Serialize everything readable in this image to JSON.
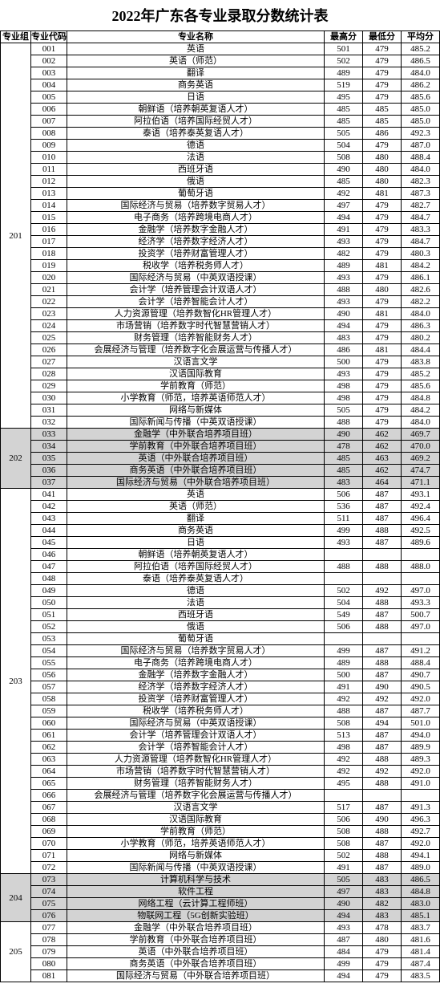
{
  "title": "2022年广东各专业录取分数统计表",
  "headers": {
    "group": "专业组",
    "code": "专业代码",
    "name": "专业名称",
    "max": "最高分",
    "min": "最低分",
    "avg": "平均分"
  },
  "columns": {
    "group": 38,
    "code": 45,
    "max": 48,
    "min": 48,
    "avg": 48
  },
  "font": {
    "body_size": 11,
    "title_size": 18,
    "family": "SimSun"
  },
  "colors": {
    "border": "#000000",
    "text": "#000000",
    "background": "#ffffff",
    "shaded_group": "#d3d3d3"
  },
  "groups": [
    {
      "id": "201",
      "shaded": false,
      "rows": [
        {
          "code": "001",
          "name": "英语",
          "max": 501,
          "min": 479,
          "avg": 485.2
        },
        {
          "code": "002",
          "name": "英语（师范）",
          "max": 502,
          "min": 479,
          "avg": 486.5
        },
        {
          "code": "003",
          "name": "翻译",
          "max": 489,
          "min": 479,
          "avg": 484.0
        },
        {
          "code": "004",
          "name": "商务英语",
          "max": 519,
          "min": 479,
          "avg": 486.2
        },
        {
          "code": "005",
          "name": "日语",
          "max": 495,
          "min": 479,
          "avg": 485.6
        },
        {
          "code": "006",
          "name": "朝鲜语（培养朝英复语人才）",
          "max": 485,
          "min": 485,
          "avg": 485.0
        },
        {
          "code": "007",
          "name": "阿拉伯语（培养国际经贸人才）",
          "max": 485,
          "min": 485,
          "avg": 485.0
        },
        {
          "code": "008",
          "name": "泰语（培养泰英复语人才）",
          "max": 505,
          "min": 486,
          "avg": 492.3
        },
        {
          "code": "009",
          "name": "德语",
          "max": 504,
          "min": 479,
          "avg": 487.0
        },
        {
          "code": "010",
          "name": "法语",
          "max": 508,
          "min": 480,
          "avg": 488.4
        },
        {
          "code": "011",
          "name": "西班牙语",
          "max": 490,
          "min": 480,
          "avg": 484.0
        },
        {
          "code": "012",
          "name": "俄语",
          "max": 485,
          "min": 480,
          "avg": 482.3
        },
        {
          "code": "013",
          "name": "葡萄牙语",
          "max": 492,
          "min": 481,
          "avg": 487.3
        },
        {
          "code": "014",
          "name": "国际经济与贸易（培养数字贸易人才）",
          "max": 497,
          "min": 479,
          "avg": 482.7
        },
        {
          "code": "015",
          "name": "电子商务（培养跨境电商人才）",
          "max": 494,
          "min": 479,
          "avg": 484.7
        },
        {
          "code": "016",
          "name": "金融学（培养数字金融人才）",
          "max": 491,
          "min": 479,
          "avg": 483.3
        },
        {
          "code": "017",
          "name": "经济学（培养数字经济人才）",
          "max": 493,
          "min": 479,
          "avg": 484.7
        },
        {
          "code": "018",
          "name": "投资学（培养财富管理人才）",
          "max": 482,
          "min": 479,
          "avg": 480.3
        },
        {
          "code": "019",
          "name": "税收学（培养税务师人才）",
          "max": 489,
          "min": 481,
          "avg": 484.2
        },
        {
          "code": "020",
          "name": "国际经济与贸易（中英双语授课）",
          "max": 493,
          "min": 479,
          "avg": 486.1
        },
        {
          "code": "021",
          "name": "会计学（培养管理会计双语人才）",
          "max": 488,
          "min": 480,
          "avg": 482.6
        },
        {
          "code": "022",
          "name": "会计学（培养智能会计人才）",
          "max": 493,
          "min": 479,
          "avg": 482.2
        },
        {
          "code": "023",
          "name": "人力资源管理（培养数智化HR管理人才）",
          "max": 490,
          "min": 481,
          "avg": 484.0
        },
        {
          "code": "024",
          "name": "市场营销（培养数字时代智慧营销人才）",
          "max": 494,
          "min": 479,
          "avg": 486.3
        },
        {
          "code": "025",
          "name": "财务管理（培养智能财务人才）",
          "max": 483,
          "min": 479,
          "avg": 480.2
        },
        {
          "code": "026",
          "name": "会展经济与管理（培养数字化会展运营与传播人才）",
          "max": 486,
          "min": 481,
          "avg": 484.4
        },
        {
          "code": "027",
          "name": "汉语言文学",
          "max": 500,
          "min": 479,
          "avg": 483.8
        },
        {
          "code": "028",
          "name": "汉语国际教育",
          "max": 493,
          "min": 479,
          "avg": 485.2
        },
        {
          "code": "029",
          "name": "学前教育（师范）",
          "max": 498,
          "min": 479,
          "avg": 485.6
        },
        {
          "code": "030",
          "name": "小学教育（师范，培养英语师范人才）",
          "max": 498,
          "min": 479,
          "avg": 484.8
        },
        {
          "code": "031",
          "name": "网络与新媒体",
          "max": 505,
          "min": 479,
          "avg": 484.2
        },
        {
          "code": "032",
          "name": "国际新闻与传播（中英双语授课）",
          "max": 488,
          "min": 479,
          "avg": 484.0
        }
      ]
    },
    {
      "id": "202",
      "shaded": true,
      "rows": [
        {
          "code": "033",
          "name": "金融学（中外联合培养项目班）",
          "max": 490,
          "min": 462,
          "avg": 469.7
        },
        {
          "code": "034",
          "name": "学前教育（中外联合培养项目班）",
          "max": 478,
          "min": 462,
          "avg": 470.0
        },
        {
          "code": "035",
          "name": "英语（中外联合培养项目班）",
          "max": 485,
          "min": 463,
          "avg": 469.2
        },
        {
          "code": "036",
          "name": "商务英语（中外联合培养项目班）",
          "max": 485,
          "min": 462,
          "avg": 474.7
        },
        {
          "code": "037",
          "name": "国际经济与贸易（中外联合培养项目班）",
          "max": 483,
          "min": 464,
          "avg": 471.1
        }
      ]
    },
    {
      "id": "203",
      "shaded": false,
      "rows": [
        {
          "code": "041",
          "name": "英语",
          "max": 506,
          "min": 487,
          "avg": 493.1
        },
        {
          "code": "042",
          "name": "英语（师范）",
          "max": 536,
          "min": 487,
          "avg": 492.4
        },
        {
          "code": "043",
          "name": "翻译",
          "max": 511,
          "min": 487,
          "avg": 496.4
        },
        {
          "code": "044",
          "name": "商务英语",
          "max": 499,
          "min": 488,
          "avg": 492.5
        },
        {
          "code": "045",
          "name": "日语",
          "max": 493,
          "min": 487,
          "avg": 489.6
        },
        {
          "code": "046",
          "name": "朝鲜语（培养朝英复语人才）",
          "max": "",
          "min": "",
          "avg": ""
        },
        {
          "code": "047",
          "name": "阿拉伯语（培养国际经贸人才）",
          "max": 488,
          "min": 488,
          "avg": 488.0
        },
        {
          "code": "048",
          "name": "泰语（培养泰英复语人才）",
          "max": "",
          "min": "",
          "avg": ""
        },
        {
          "code": "049",
          "name": "德语",
          "max": 502,
          "min": 492,
          "avg": 497.0
        },
        {
          "code": "050",
          "name": "法语",
          "max": 504,
          "min": 488,
          "avg": 493.3
        },
        {
          "code": "051",
          "name": "西班牙语",
          "max": 549,
          "min": 487,
          "avg": 500.7
        },
        {
          "code": "052",
          "name": "俄语",
          "max": 506,
          "min": 488,
          "avg": 497.0
        },
        {
          "code": "053",
          "name": "葡萄牙语",
          "max": "",
          "min": "",
          "avg": ""
        },
        {
          "code": "054",
          "name": "国际经济与贸易（培养数字贸易人才）",
          "max": 499,
          "min": 487,
          "avg": 491.2
        },
        {
          "code": "055",
          "name": "电子商务（培养跨境电商人才）",
          "max": 489,
          "min": 488,
          "avg": 488.4
        },
        {
          "code": "056",
          "name": "金融学（培养数字金融人才）",
          "max": 500,
          "min": 487,
          "avg": 490.7
        },
        {
          "code": "057",
          "name": "经济学（培养数字经济人才）",
          "max": 491,
          "min": 490,
          "avg": 490.5
        },
        {
          "code": "058",
          "name": "投资学（培养财富管理人才）",
          "max": 492,
          "min": 492,
          "avg": 492.0
        },
        {
          "code": "059",
          "name": "税收学（培养税务师人才）",
          "max": 488,
          "min": 487,
          "avg": 487.7
        },
        {
          "code": "060",
          "name": "国际经济与贸易（中英双语授课）",
          "max": 508,
          "min": 494,
          "avg": 501.0
        },
        {
          "code": "061",
          "name": "会计学（培养管理会计双语人才）",
          "max": 513,
          "min": 487,
          "avg": 494.0
        },
        {
          "code": "062",
          "name": "会计学（培养智能会计人才）",
          "max": 498,
          "min": 487,
          "avg": 489.9
        },
        {
          "code": "063",
          "name": "人力资源管理（培养数智化HR管理人才）",
          "max": 492,
          "min": 488,
          "avg": 489.3
        },
        {
          "code": "064",
          "name": "市场营销（培养数字时代智慧营销人才）",
          "max": 492,
          "min": 492,
          "avg": 492.0
        },
        {
          "code": "065",
          "name": "财务管理（培养智能财务人才）",
          "max": 495,
          "min": 488,
          "avg": 491.0
        },
        {
          "code": "066",
          "name": "会展经济与管理（培养数字化会展运营与传播人才）",
          "max": "",
          "min": "",
          "avg": ""
        },
        {
          "code": "067",
          "name": "汉语言文学",
          "max": 517,
          "min": 487,
          "avg": 491.3
        },
        {
          "code": "068",
          "name": "汉语国际教育",
          "max": 506,
          "min": 490,
          "avg": 496.3
        },
        {
          "code": "069",
          "name": "学前教育（师范）",
          "max": 508,
          "min": 488,
          "avg": 492.7
        },
        {
          "code": "070",
          "name": "小学教育（师范，培养英语师范人才）",
          "max": 508,
          "min": 487,
          "avg": 492.0
        },
        {
          "code": "071",
          "name": "网络与新媒体",
          "max": 502,
          "min": 488,
          "avg": 494.1
        },
        {
          "code": "072",
          "name": "国际新闻与传播（中英双语授课）",
          "max": 491,
          "min": 487,
          "avg": 489.0
        }
      ]
    },
    {
      "id": "204",
      "shaded": true,
      "rows": [
        {
          "code": "073",
          "name": "计算机科学与技术",
          "max": 505,
          "min": 483,
          "avg": 486.5
        },
        {
          "code": "074",
          "name": "软件工程",
          "max": 497,
          "min": 483,
          "avg": 484.8
        },
        {
          "code": "075",
          "name": "网络工程（云计算工程师班）",
          "max": 490,
          "min": 482,
          "avg": 483.0
        },
        {
          "code": "076",
          "name": "物联网工程（5G创新实验班）",
          "max": 494,
          "min": 483,
          "avg": 485.1
        }
      ]
    },
    {
      "id": "205",
      "shaded": false,
      "rows": [
        {
          "code": "077",
          "name": "金融学（中外联合培养项目班）",
          "max": 493,
          "min": 478,
          "avg": 483.7
        },
        {
          "code": "078",
          "name": "学前教育（中外联合培养项目班）",
          "max": 487,
          "min": 480,
          "avg": 481.6
        },
        {
          "code": "079",
          "name": "英语（中外联合培养项目班）",
          "max": 484,
          "min": 479,
          "avg": 481.4
        },
        {
          "code": "080",
          "name": "商务英语（中外联合培养项目班）",
          "max": 499,
          "min": 479,
          "avg": 487.4
        },
        {
          "code": "081",
          "name": "国际经济与贸易（中外联合培养项目班）",
          "max": 494,
          "min": 479,
          "avg": 483.5
        }
      ]
    }
  ]
}
